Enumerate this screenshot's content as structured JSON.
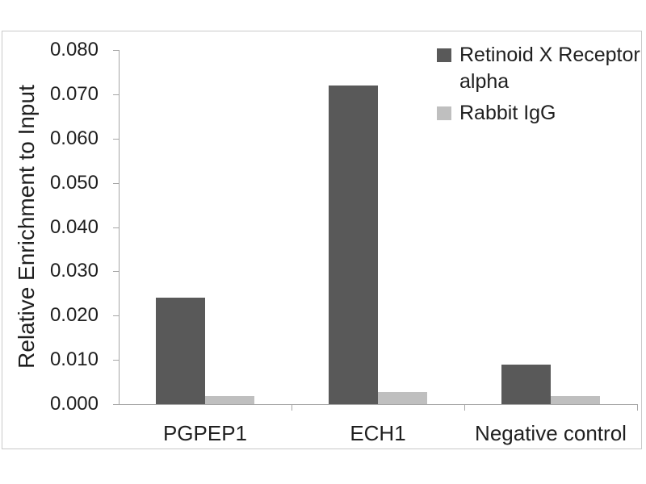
{
  "chart_data": {
    "type": "bar",
    "title": "",
    "xlabel": "",
    "ylabel": "Relative Enrichment to Input",
    "categories": [
      "PGPEP1",
      "ECH1",
      "Negative control"
    ],
    "series": [
      {
        "name": "Retinoid X Receptor alpha",
        "color": "#595959",
        "values": [
          0.024,
          0.072,
          0.009
        ]
      },
      {
        "name": "Rabbit IgG",
        "color": "#bfbfbf",
        "values": [
          0.0018,
          0.0027,
          0.0018
        ]
      }
    ],
    "ylim": [
      0,
      0.08
    ],
    "ytick_step": 0.01,
    "ytick_labels": [
      "0.000",
      "0.010",
      "0.020",
      "0.030",
      "0.040",
      "0.050",
      "0.060",
      "0.070",
      "0.080"
    ],
    "grid": false,
    "legend_position": "top-right",
    "bar_layout": "grouped, two bars touching per category"
  },
  "colors": {
    "axis_line": "#a6a6a6",
    "frame_border": "#c9c9c9",
    "text": "#1f1f1f",
    "background": "#ffffff"
  }
}
